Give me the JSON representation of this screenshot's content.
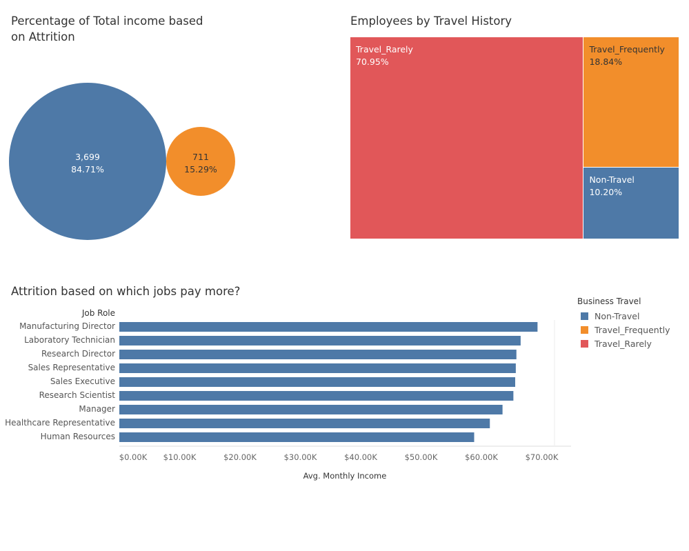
{
  "colors": {
    "non_travel": "#4e79a7",
    "travel_frequently": "#f28e2b",
    "travel_rarely": "#e15759"
  },
  "chart_data": [
    {
      "type": "bubble",
      "title": "Percentage of Total income based on Attrition",
      "bubbles": [
        {
          "value": 3699,
          "value_label": "3,699",
          "percent_label": "84.71%",
          "color": "#4e79a7",
          "text_color": "#ffffff"
        },
        {
          "value": 711,
          "value_label": "711",
          "percent_label": "15.29%",
          "color": "#f28e2b",
          "text_color": "#333333"
        }
      ]
    },
    {
      "type": "treemap",
      "title": "Employees by Travel History",
      "cells": [
        {
          "name": "Travel_Rarely",
          "percent": 70.95,
          "percent_label": "70.95%",
          "color": "#e15759",
          "text_color": "#ffffff"
        },
        {
          "name": "Travel_Frequently",
          "percent": 18.84,
          "percent_label": "18.84%",
          "color": "#f28e2b",
          "text_color": "#333333"
        },
        {
          "name": "Non-Travel",
          "percent": 10.2,
          "percent_label": "10.20%",
          "color": "#4e79a7",
          "text_color": "#ffffff"
        }
      ]
    },
    {
      "type": "bar",
      "orientation": "horizontal",
      "title": "Attrition based on which jobs pay more?",
      "row_header": "Job Role",
      "xlabel": "Avg. Monthly Income",
      "xlim": [
        0,
        72000
      ],
      "ticks": [
        0,
        10000,
        20000,
        30000,
        40000,
        50000,
        60000,
        70000
      ],
      "tick_labels": [
        "$0.00K",
        "$10.00K",
        "$20.00K",
        "$30.00K",
        "$40.00K",
        "$50.00K",
        "$60.00K",
        "$70.00K"
      ],
      "categories": [
        "Manufacturing Director",
        "Laboratory Technician",
        "Research Director",
        "Sales Representative",
        "Sales Executive",
        "Research Scientist",
        "Manager",
        "Healthcare Representative",
        "Human Resources"
      ],
      "series": [
        {
          "name": "Non-Travel",
          "color": "#4e79a7",
          "values": [
            69300,
            66500,
            65800,
            65700,
            65600,
            65300,
            63500,
            61400,
            58800
          ]
        }
      ],
      "legend": {
        "title": "Business Travel",
        "position": "right",
        "items": [
          {
            "label": "Non-Travel",
            "color": "#4e79a7"
          },
          {
            "label": "Travel_Frequently",
            "color": "#f28e2b"
          },
          {
            "label": "Travel_Rarely",
            "color": "#e15759"
          }
        ]
      }
    }
  ]
}
